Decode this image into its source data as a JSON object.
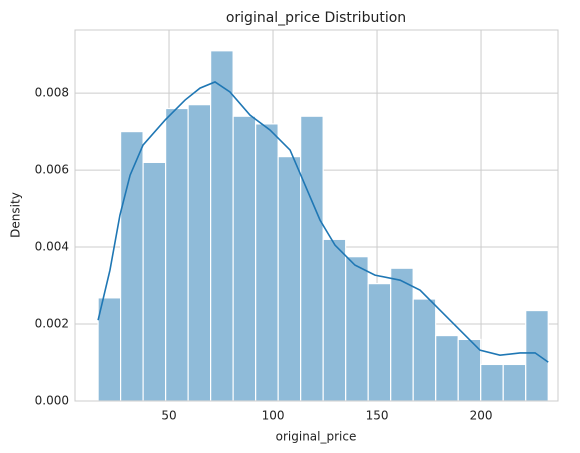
{
  "chart_data": {
    "type": "histogram",
    "title": "original_price Distribution",
    "x_label": "original_price",
    "y_label": "Density",
    "bins": [
      15.9,
      26.72,
      37.54,
      48.36,
      59.18,
      70.0,
      80.82,
      91.64,
      102.46,
      113.28,
      124.1,
      134.92,
      145.74,
      156.56,
      167.38,
      178.2,
      189.02,
      199.84,
      210.66,
      221.48,
      232.3
    ],
    "values": [
      0.00268,
      0.007,
      0.0062,
      0.0076,
      0.0077,
      0.0091,
      0.0074,
      0.0072,
      0.00635,
      0.0074,
      0.0042,
      0.00375,
      0.00305,
      0.00345,
      0.00265,
      0.0017,
      0.0016,
      0.00095,
      0.00095,
      0.00235
    ],
    "color": "#8fbbd9",
    "kde": {
      "type": "line",
      "x": [
        15.9,
        21.6,
        26.4,
        31.3,
        37.5,
        48.1,
        57.7,
        64.9,
        72.1,
        79.3,
        88.9,
        98.6,
        108.2,
        115.4,
        122.6,
        129.8,
        139.4,
        149.0,
        161.1,
        170.7,
        180.3,
        189.9,
        199.5,
        209.1,
        218.8,
        226.0,
        232.3
      ],
      "values": [
        0.0021,
        0.0034,
        0.00483,
        0.00587,
        0.00665,
        0.0073,
        0.00782,
        0.00813,
        0.00829,
        0.00803,
        0.00743,
        0.00704,
        0.00652,
        0.00561,
        0.0047,
        0.00405,
        0.00353,
        0.00327,
        0.00314,
        0.00288,
        0.00236,
        0.00184,
        0.00132,
        0.00119,
        0.00125,
        0.00125,
        0.00101
      ],
      "color": "#1f77b4"
    },
    "xlim": [
      4.8,
      237
    ],
    "ylim": [
      0,
      0.00964
    ],
    "xticks": [
      50,
      100,
      150,
      200
    ],
    "yticks": [
      {
        "value": 0,
        "label": "0.000"
      },
      {
        "value": 0.002,
        "label": "0.002"
      },
      {
        "value": 0.004,
        "label": "0.004"
      },
      {
        "value": 0.006,
        "label": "0.006"
      },
      {
        "value": 0.008,
        "label": "0.008"
      }
    ],
    "grid": true
  }
}
